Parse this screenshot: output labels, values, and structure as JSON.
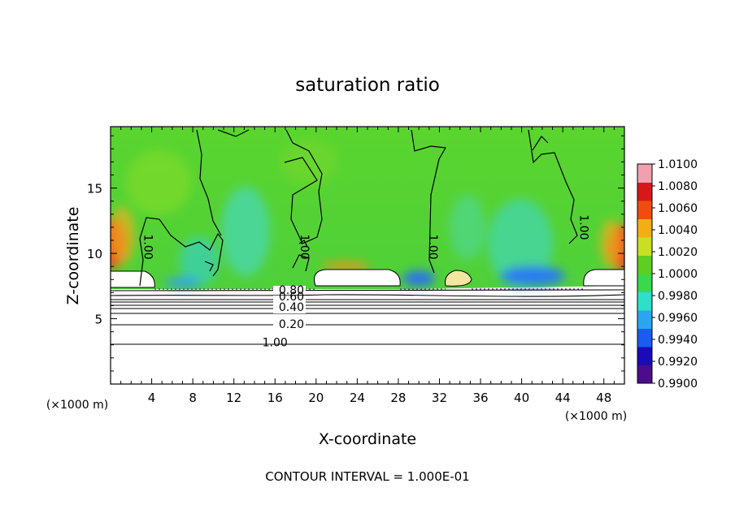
{
  "chart_data": {
    "type": "heatmap",
    "title": "saturation ratio",
    "xlabel": "X-coordinate",
    "ylabel": "Z-coordinate",
    "x_unit": "(×1000 m)",
    "y_unit": "(×1000 m)",
    "xlim": [
      0,
      50
    ],
    "ylim": [
      0,
      19.7
    ],
    "x_ticks": [
      4,
      8,
      12,
      16,
      20,
      24,
      28,
      32,
      36,
      40,
      44,
      48
    ],
    "y_ticks": [
      5,
      10,
      15
    ],
    "colorbar": {
      "min": 0.99,
      "max": 1.01,
      "tick_labels": [
        "1.0100",
        "1.0080",
        "1.0060",
        "1.0040",
        "1.0020",
        "1.0000",
        "0.9980",
        "0.9960",
        "0.9940",
        "0.9920",
        "0.9900"
      ],
      "colors": [
        "#4a0d8c",
        "#1a0ab8",
        "#1a5cf0",
        "#2aa6f0",
        "#2ee0c8",
        "#3ad84e",
        "#5ecf20",
        "#c8e020",
        "#f5ad14",
        "#f04c10",
        "#d81818",
        "#f0a0b0"
      ]
    },
    "contour_labels": [
      {
        "text": "0.80",
        "x": 17.6,
        "y": 7.2
      },
      {
        "text": "0.60",
        "x": 17.6,
        "y": 6.7
      },
      {
        "text": "0.40",
        "x": 17.6,
        "y": 5.9
      },
      {
        "text": "0.20",
        "x": 17.6,
        "y": 4.6
      },
      {
        "text": "1.00",
        "x": 3.3,
        "y": 10.5
      },
      {
        "text": "1.00",
        "x": 18.5,
        "y": 10.5
      },
      {
        "text": "1.00",
        "x": 31,
        "y": 10.5
      },
      {
        "text": "1.00",
        "x": 45.7,
        "y": 12
      },
      {
        "text": "1.00",
        "x": 16,
        "y": 3.2
      }
    ],
    "contour_interval_label": "CONTOUR INTERVAL = 1.000E-01"
  }
}
